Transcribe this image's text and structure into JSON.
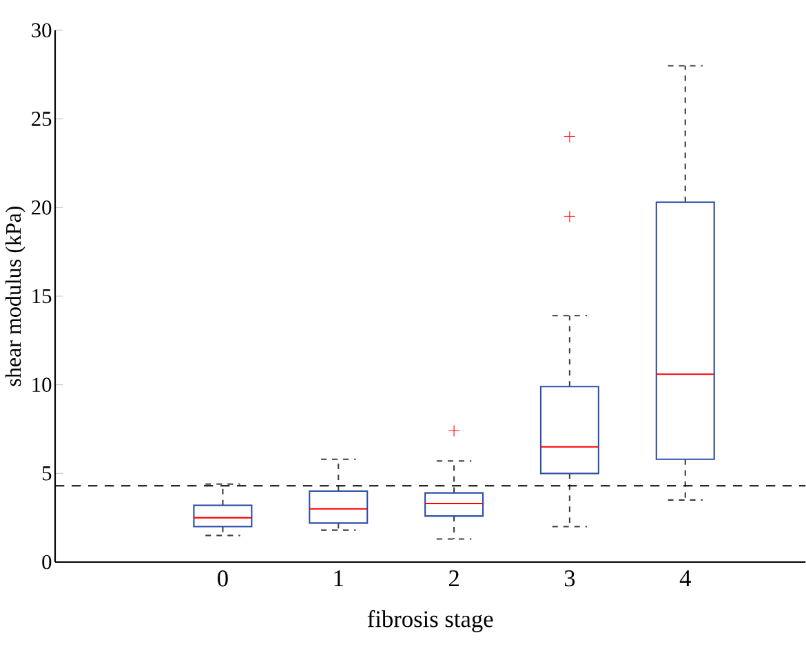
{
  "chart_data": {
    "type": "box",
    "xlabel": "fibrosis stage",
    "ylabel": "shear modulus (kPa)",
    "categories": [
      "0",
      "1",
      "2",
      "3",
      "4"
    ],
    "boxes": [
      {
        "low": 1.5,
        "q1": 2.0,
        "median": 2.5,
        "q3": 3.2,
        "high": 4.4
      },
      {
        "low": 1.8,
        "q1": 2.2,
        "median": 3.0,
        "q3": 4.0,
        "high": 5.8
      },
      {
        "low": 1.3,
        "q1": 2.6,
        "median": 3.3,
        "q3": 3.9,
        "high": 5.7,
        "outliers": [
          7.4
        ]
      },
      {
        "low": 2.0,
        "q1": 5.0,
        "median": 6.5,
        "q3": 9.9,
        "high": 13.9,
        "outliers": [
          19.5,
          24.0
        ]
      },
      {
        "low": 3.5,
        "q1": 5.8,
        "median": 10.6,
        "q3": 20.3,
        "high": 28.0
      }
    ],
    "ylim": [
      0,
      30
    ],
    "yticks": [
      0,
      5,
      10,
      15,
      20,
      25,
      30
    ],
    "ref_lines": [
      {
        "axis": "y",
        "value": 4.3,
        "line_style": "dashed",
        "color": "#000000"
      }
    ]
  }
}
